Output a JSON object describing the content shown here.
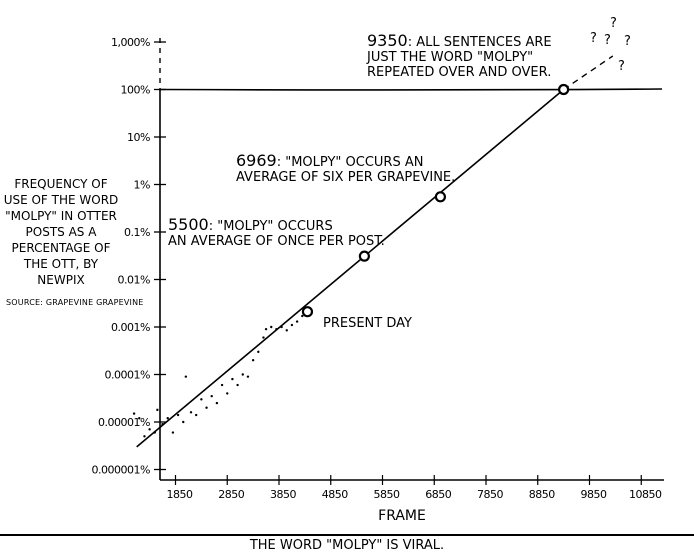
{
  "caption": "The word \"Molpy\" is viral.",
  "y_axis_description": "Frequency of use of the word \"Molpy\" in Otter posts as a percentage of the OTT, by newpix",
  "source": "Source: Grapevine Grapevine",
  "chart_data": {
    "type": "line",
    "xlabel": "FRAME",
    "ylabel": "FREQUENCY OF USE OF THE WORD \"MOLPY\" IN OTTER POSTS AS A PERCENTAGE OF THE OTT, BY NEWPIX",
    "xlim": [
      1000,
      11200
    ],
    "ylim_exponent": [
      -6,
      3
    ],
    "y_scale": "log",
    "x_ticks": [
      1850,
      2850,
      3850,
      4850,
      5850,
      6850,
      7850,
      8850,
      9850,
      10850
    ],
    "y_tick_labels": [
      "0.000001%",
      "0.00001%",
      "0.0001%",
      "0.001%",
      "0.01%",
      "0.1%",
      "1%",
      "10%",
      "100%",
      "1,000%"
    ],
    "y_tick_exponents": [
      -6,
      -5,
      -4,
      -3,
      -2,
      -1,
      0,
      1,
      2,
      3
    ],
    "reference_line_y_percent": 100,
    "trend_line": {
      "x": [
        1100,
        9350
      ],
      "y_percent": [
        3e-06,
        100
      ]
    },
    "extrapolation": {
      "x": [
        9350,
        10300
      ],
      "y_percent": [
        100,
        1000
      ]
    },
    "scatter": [
      {
        "x": 1050,
        "y": 1.5e-05
      },
      {
        "x": 1150,
        "y": 1.2e-05
      },
      {
        "x": 1250,
        "y": 5e-06
      },
      {
        "x": 1350,
        "y": 7e-06
      },
      {
        "x": 1450,
        "y": 6e-06
      },
      {
        "x": 1500,
        "y": 1.8e-05
      },
      {
        "x": 1600,
        "y": 9e-06
      },
      {
        "x": 1700,
        "y": 1.2e-05
      },
      {
        "x": 1800,
        "y": 6e-06
      },
      {
        "x": 1900,
        "y": 1.4e-05
      },
      {
        "x": 2000,
        "y": 1e-05
      },
      {
        "x": 2050,
        "y": 9e-05
      },
      {
        "x": 2150,
        "y": 1.6e-05
      },
      {
        "x": 2250,
        "y": 1.4e-05
      },
      {
        "x": 2350,
        "y": 3e-05
      },
      {
        "x": 2450,
        "y": 2e-05
      },
      {
        "x": 2550,
        "y": 3.5e-05
      },
      {
        "x": 2650,
        "y": 2.5e-05
      },
      {
        "x": 2750,
        "y": 6e-05
      },
      {
        "x": 2850,
        "y": 4e-05
      },
      {
        "x": 2950,
        "y": 8e-05
      },
      {
        "x": 3050,
        "y": 6e-05
      },
      {
        "x": 3150,
        "y": 0.0001
      },
      {
        "x": 3250,
        "y": 9e-05
      },
      {
        "x": 3350,
        "y": 0.0002
      },
      {
        "x": 3450,
        "y": 0.0003
      },
      {
        "x": 3550,
        "y": 0.0006
      },
      {
        "x": 3600,
        "y": 0.0009
      },
      {
        "x": 3700,
        "y": 0.001
      },
      {
        "x": 3800,
        "y": 0.0009
      },
      {
        "x": 3900,
        "y": 0.001
      },
      {
        "x": 4000,
        "y": 0.00085
      },
      {
        "x": 4100,
        "y": 0.0011
      },
      {
        "x": 4200,
        "y": 0.0013
      },
      {
        "x": 4300,
        "y": 0.0017
      }
    ],
    "markers": [
      {
        "x": 4400,
        "y_percent": 0.0021,
        "label_number": "",
        "label": "PRESENT DAY"
      },
      {
        "x": 5500,
        "y_percent": 0.031,
        "label_number": "5500",
        "label": ": \"MOLPY\" OCCURS|AN AVERAGE OF ONCE PER POST."
      },
      {
        "x": 6969,
        "y_percent": 0.55,
        "label_number": "6969",
        "label": ": \"MOLPY\" OCCURS AN|AVERAGE OF SIX PER GRAPEVINE."
      },
      {
        "x": 9350,
        "y_percent": 100,
        "label_number": "9350",
        "label": ": ALL SENTENCES ARE|JUST THE WORD \"MOLPY\"|REPEATED OVER AND OVER."
      }
    ],
    "question_marks": [
      "?",
      "?",
      "?",
      "?",
      "?"
    ]
  }
}
